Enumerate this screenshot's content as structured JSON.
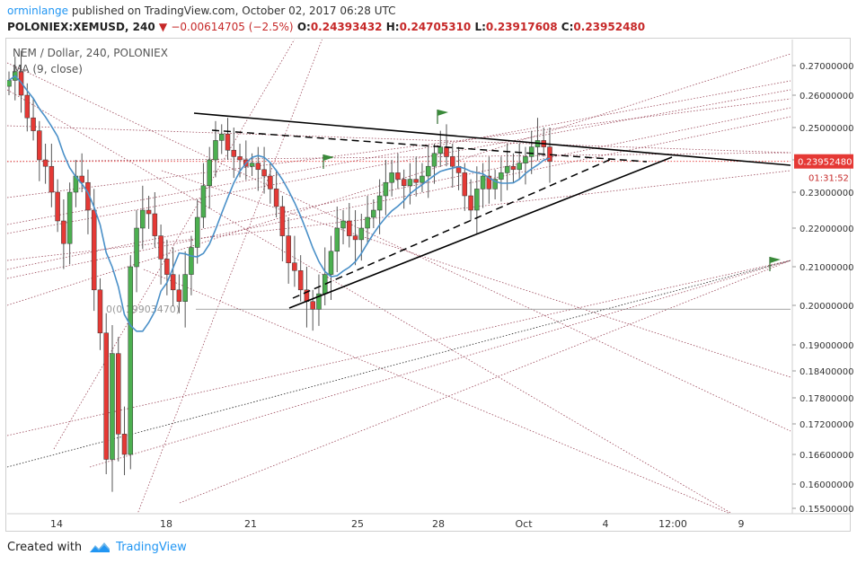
{
  "header": {
    "author": "orminlange",
    "published_text": "published on TradingView.com, October 02, 2017 06:28 UTC",
    "symbol": "POLONIEX:XEMUSD, 240",
    "change_arrow": "▼",
    "change": "−0.00614705 (−2.5%)",
    "ohlc": [
      {
        "key": "O:",
        "value": "0.24393432"
      },
      {
        "key": "H:",
        "value": "0.24705310"
      },
      {
        "key": "L:",
        "value": "0.23917608"
      },
      {
        "key": "C:",
        "value": "0.23952480"
      }
    ]
  },
  "legend": {
    "title": "NEM / Dollar, 240, POLONIEX",
    "indicator": "MA (9, close)"
  },
  "footer": {
    "created_with": "Created with",
    "brand": "TradingView"
  },
  "chart_data": {
    "type": "candlestick",
    "title": "NEM / Dollar, 240, POLONIEX",
    "price_axis": {
      "ticks": [
        "0.27000000",
        "0.26000000",
        "0.25000000",
        "0.24000000",
        "0.23000000",
        "0.22000000",
        "0.21000000",
        "0.20000000",
        "0.19000000",
        "0.18400000",
        "0.17800000",
        "0.17200000",
        "0.16600000",
        "0.16000000",
        "0.15500000"
      ]
    },
    "time_axis": {
      "ticks": [
        "14",
        "18",
        "21",
        "25",
        "28",
        "Oct",
        "4",
        "12:00",
        "9"
      ]
    },
    "last_price_label": "0.23952480",
    "countdown_label": "01:31:52",
    "horizontal_level_label": "0(0.19903470)",
    "horizontal_level": 0.1990347,
    "colors": {
      "up": "#4caf50",
      "down": "#e53935",
      "ma": "#4a90c8",
      "trendline": "#000000",
      "fan_lines": "#8b2a3f",
      "flag": "#3a8a3a",
      "price_label_bg": "#e53935"
    },
    "ma_period": 9,
    "note_approx": "close prices approximated from screenshot",
    "closes": [
      0.265,
      0.268,
      0.26,
      0.253,
      0.249,
      0.24,
      0.238,
      0.23,
      0.222,
      0.216,
      0.23,
      0.235,
      0.233,
      0.225,
      0.204,
      0.193,
      0.165,
      0.188,
      0.17,
      0.166,
      0.21,
      0.22,
      0.225,
      0.224,
      0.218,
      0.212,
      0.208,
      0.204,
      0.201,
      0.208,
      0.215,
      0.223,
      0.232,
      0.24,
      0.246,
      0.248,
      0.243,
      0.241,
      0.24,
      0.238,
      0.239,
      0.237,
      0.235,
      0.231,
      0.226,
      0.218,
      0.211,
      0.209,
      0.204,
      0.201,
      0.199,
      0.203,
      0.208,
      0.214,
      0.22,
      0.222,
      0.218,
      0.217,
      0.22,
      0.223,
      0.225,
      0.229,
      0.233,
      0.236,
      0.234,
      0.232,
      0.234,
      0.233,
      0.235,
      0.238,
      0.242,
      0.244,
      0.241,
      0.238,
      0.236,
      0.229,
      0.225,
      0.231,
      0.235,
      0.231,
      0.234,
      0.236,
      0.238,
      0.237,
      0.239,
      0.241,
      0.244,
      0.246,
      0.244,
      0.2395
    ]
  }
}
